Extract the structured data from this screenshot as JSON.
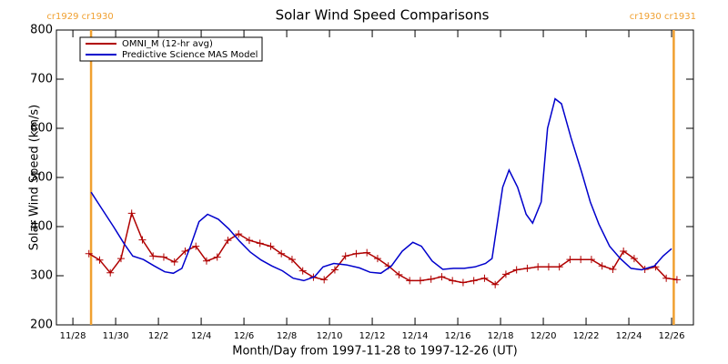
{
  "chart_data": {
    "type": "line",
    "title": "Solar Wind Speed Comparisons",
    "xlabel": "Month/Day from 1997-11-28 to 1997-12-26 (UT)",
    "ylabel": "Solar Wind Speed (km/s)",
    "xlim": [
      -0.77,
      29.02
    ],
    "ylim": [
      200,
      800
    ],
    "yticks": [
      200,
      300,
      400,
      500,
      600,
      700,
      800
    ],
    "xticks": [
      {
        "value": 0,
        "label": "11/28"
      },
      {
        "value": 2,
        "label": "11/30"
      },
      {
        "value": 4,
        "label": "12/2"
      },
      {
        "value": 6,
        "label": "12/4"
      },
      {
        "value": 8,
        "label": "12/6"
      },
      {
        "value": 10,
        "label": "12/8"
      },
      {
        "value": 12,
        "label": "12/10"
      },
      {
        "value": 14,
        "label": "12/12"
      },
      {
        "value": 16,
        "label": "12/14"
      },
      {
        "value": 18,
        "label": "12/16"
      },
      {
        "value": 20,
        "label": "12/18"
      },
      {
        "value": 22,
        "label": "12/20"
      },
      {
        "value": 24,
        "label": "12/22"
      },
      {
        "value": 26,
        "label": "12/24"
      },
      {
        "value": 28,
        "label": "12/26"
      }
    ],
    "vlines": [
      {
        "x": 0.85,
        "label": "cr1929 cr1930",
        "color": "#f0a030"
      },
      {
        "x": 28.1,
        "label": "cr1930 cr1931",
        "color": "#f0a030"
      }
    ],
    "legend": "upper left",
    "series": [
      {
        "name": "OMNI_M (12-hr avg)",
        "color": "#b00000",
        "marker": "+",
        "x": [
          0.75,
          1.25,
          1.75,
          2.25,
          2.75,
          3.25,
          3.75,
          4.25,
          4.75,
          5.25,
          5.75,
          6.25,
          6.75,
          7.25,
          7.75,
          8.25,
          8.75,
          9.25,
          9.75,
          10.25,
          10.75,
          11.25,
          11.75,
          12.25,
          12.75,
          13.25,
          13.75,
          14.25,
          14.75,
          15.25,
          15.75,
          16.25,
          16.75,
          17.25,
          17.75,
          18.25,
          18.75,
          19.25,
          19.75,
          20.25,
          20.75,
          21.25,
          21.75,
          22.25,
          22.75,
          23.25,
          23.75,
          24.25,
          24.75,
          25.25,
          25.75,
          26.25,
          26.75,
          27.25,
          27.75,
          28.25
        ],
        "values": [
          345,
          332,
          306,
          335,
          427,
          373,
          340,
          338,
          328,
          350,
          360,
          330,
          338,
          372,
          385,
          372,
          366,
          360,
          345,
          333,
          310,
          297,
          292,
          312,
          340,
          345,
          347,
          335,
          320,
          302,
          290,
          290,
          293,
          298,
          290,
          286,
          290,
          295,
          282,
          303,
          312,
          315,
          318,
          318,
          318,
          333,
          333,
          333,
          320,
          313,
          350,
          335,
          313,
          318,
          295,
          292
        ]
      },
      {
        "name": "Predictive Science MAS Model",
        "color": "#0000cc",
        "x": [
          0.85,
          1.3,
          1.9,
          2.4,
          2.8,
          3.3,
          3.8,
          4.3,
          4.7,
          5.1,
          5.5,
          5.9,
          6.3,
          6.8,
          7.3,
          7.8,
          8.3,
          8.8,
          9.3,
          9.8,
          10.3,
          10.8,
          11.3,
          11.7,
          12.2,
          12.8,
          13.4,
          13.9,
          14.4,
          14.9,
          15.4,
          15.9,
          16.3,
          16.8,
          17.3,
          17.8,
          18.3,
          18.8,
          19.3,
          19.6,
          20.1,
          20.4,
          20.8,
          21.2,
          21.5,
          21.9,
          22.2,
          22.55,
          22.85,
          23.3,
          23.8,
          24.2,
          24.6,
          25.1,
          25.6,
          26.1,
          26.6,
          27.2,
          27.6,
          28.0
        ],
        "values": [
          470,
          440,
          400,
          365,
          340,
          333,
          320,
          308,
          305,
          315,
          360,
          410,
          425,
          415,
          395,
          370,
          348,
          332,
          320,
          310,
          295,
          290,
          298,
          318,
          325,
          322,
          316,
          307,
          305,
          320,
          350,
          368,
          360,
          330,
          313,
          315,
          315,
          318,
          325,
          335,
          480,
          515,
          480,
          425,
          407,
          450,
          600,
          660,
          650,
          580,
          510,
          450,
          405,
          360,
          335,
          315,
          312,
          320,
          340,
          355
        ]
      }
    ]
  }
}
